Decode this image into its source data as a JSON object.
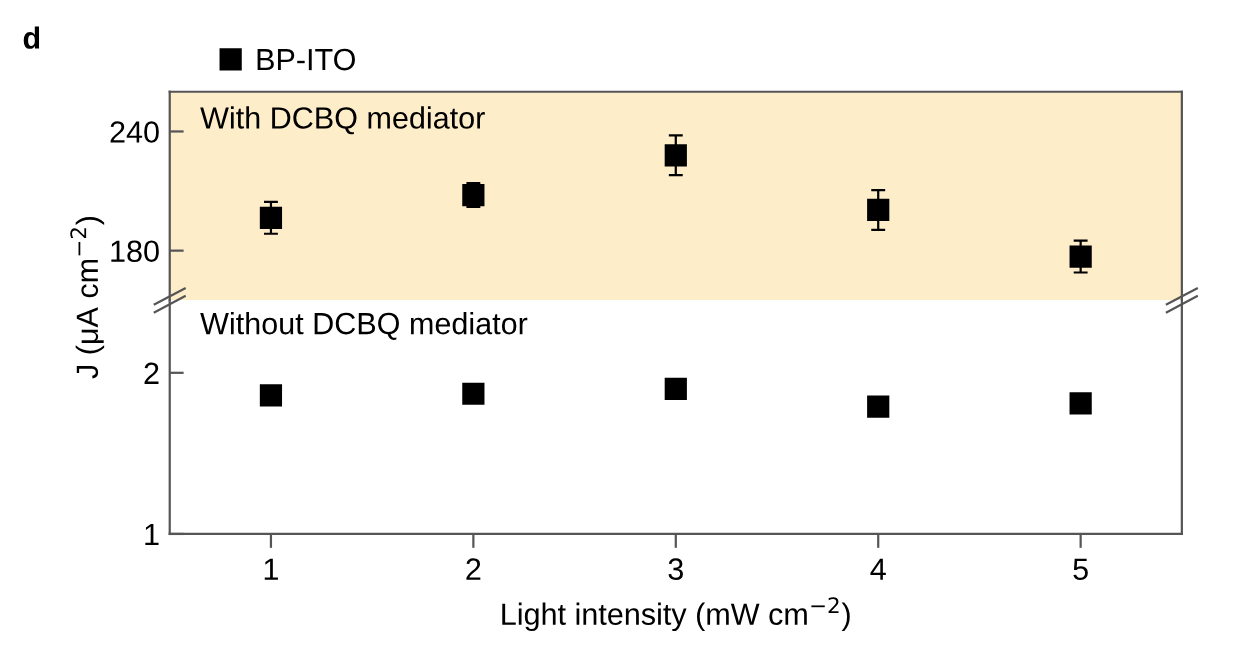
{
  "chart_data": [
    {
      "type": "scatter",
      "annotations": [
        "d"
      ],
      "ylabel": "J (μA cm$^{−2}$)",
      "x": [
        1,
        2,
        3,
        4,
        5
      ],
      "xlim": [
        0.5,
        5.5
      ],
      "ylim": [
        155,
        260
      ],
      "yticks": [
        180,
        240
      ],
      "tick_labels": "y",
      "marker": "square",
      "legend": "top left",
      "bands": [
        {
          "axis": "y",
          "from": 155,
          "to": 260,
          "label": "With DCBQ mediator",
          "color": "#fdedc9"
        }
      ],
      "series": [
        {
          "name": "BP-ITO",
          "color": "#000000",
          "values": [
            196.5,
            208,
            228,
            200.5,
            177
          ],
          "errors": [
            8,
            6,
            10,
            10,
            8
          ]
        }
      ]
    },
    {
      "type": "scatter",
      "annotations": [
        "Without DCBQ mediator"
      ],
      "xlabel": "Light intensity (mW cm$^{−2}$)",
      "x": [
        1,
        2,
        3,
        4,
        5
      ],
      "xlim": [
        0.5,
        5.5
      ],
      "xticks": [
        1,
        2,
        3,
        4,
        5
      ],
      "ylim": [
        1,
        2.45
      ],
      "yticks": [
        1,
        2
      ],
      "marker": "square",
      "series": [
        {
          "color": "#000000",
          "values": [
            1.86,
            1.87,
            1.9,
            1.79,
            1.81
          ]
        }
      ]
    }
  ]
}
